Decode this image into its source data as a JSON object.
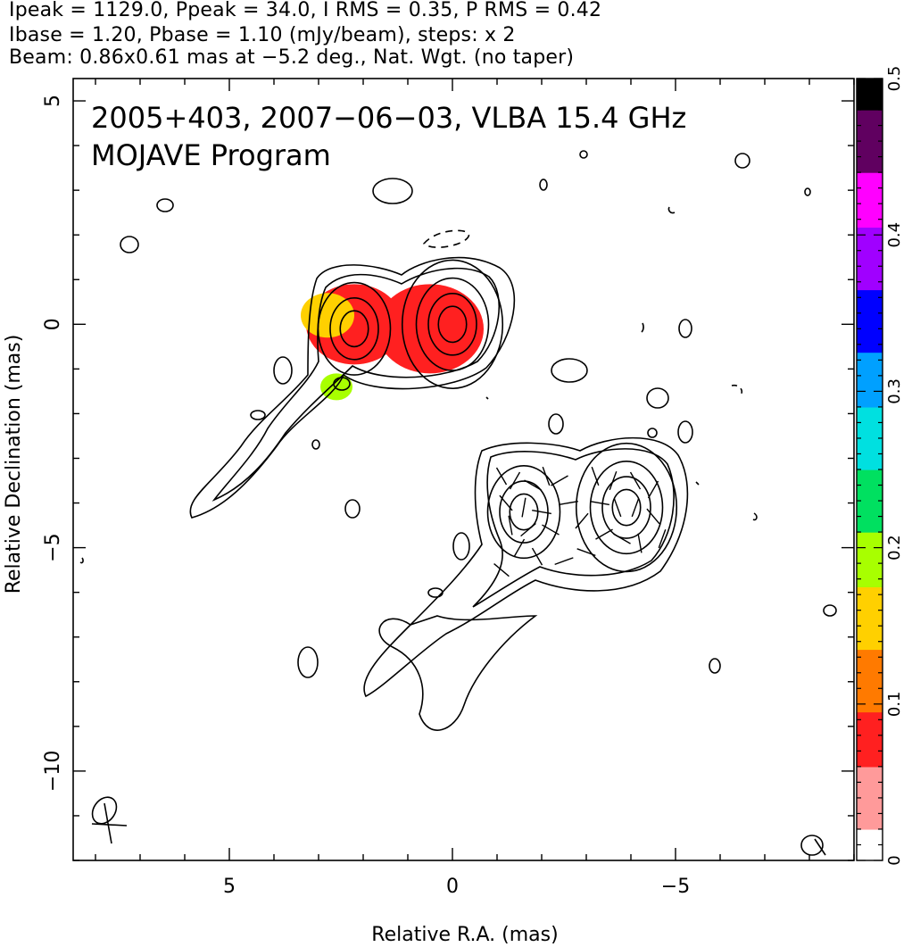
{
  "header": {
    "line1": "Ipeak = 1129.0, Ppeak = 34.0, I RMS = 0.35, P RMS = 0.42",
    "line2": "Ibase = 1.20, Pbase = 1.10 (mJy/beam), steps: x 2",
    "line3": "Beam: 0.86x0.61 mas at −5.2 deg., Nat. Wgt. (no taper)"
  },
  "chart_data": {
    "type": "heatmap",
    "title": "2005+403, 2007−06−03, VLBA 15.4 GHz",
    "subtitle": "MOJAVE Program",
    "xlabel": "Relative R.A. (mas)",
    "ylabel": "Relative Declination (mas)",
    "xlim": [
      8.5,
      -9.0
    ],
    "ylim": [
      -12.0,
      5.5
    ],
    "xticks": [
      {
        "value": 5,
        "label": "5"
      },
      {
        "value": 0,
        "label": "0"
      },
      {
        "value": -5,
        "label": "−5"
      }
    ],
    "yticks": [
      {
        "value": 5,
        "label": "5"
      },
      {
        "value": 0,
        "label": "0"
      },
      {
        "value": -5,
        "label": "−5"
      },
      {
        "value": -10,
        "label": "−10"
      }
    ],
    "colorbar": {
      "range": [
        0,
        0.5
      ],
      "ticks": [
        {
          "value": 0,
          "label": "0"
        },
        {
          "value": 0.1,
          "label": "0.1"
        },
        {
          "value": 0.2,
          "label": "0.2"
        },
        {
          "value": 0.3,
          "label": "0.3"
        },
        {
          "value": 0.4,
          "label": "0.4"
        },
        {
          "value": 0.5,
          "label": "0.5"
        }
      ],
      "colors": [
        "#ffffff",
        "#ff9a9a",
        "#ff2020",
        "#ff7a00",
        "#ffd000",
        "#a8ff00",
        "#00e060",
        "#00e0e0",
        "#00a0ff",
        "#0000ff",
        "#a000ff",
        "#ff00ff",
        "#600060",
        "#000000"
      ]
    },
    "fractional_polarization_map": [
      {
        "x": 2.2,
        "y": 0.0,
        "r": 0.9,
        "value": 0.07
      },
      {
        "x": 0.5,
        "y": -0.1,
        "r": 1.0,
        "value": 0.08
      },
      {
        "x": 2.8,
        "y": 0.2,
        "r": 0.5,
        "value": 0.17
      },
      {
        "x": 2.6,
        "y": -1.4,
        "r": 0.3,
        "value": 0.2
      }
    ],
    "stokes_i_contours": [
      {
        "component": "upper-core",
        "center": [
          0.0,
          0.0
        ],
        "radii": [
          0.35,
          0.6,
          0.9,
          1.25
        ]
      },
      {
        "component": "upper-jet",
        "center": [
          2.2,
          -0.1
        ],
        "radii": [
          0.35,
          0.6,
          0.9
        ]
      },
      {
        "component": "lower-core",
        "center": [
          -3.9,
          -4.1
        ],
        "radii": [
          0.35,
          0.6,
          0.9,
          1.25
        ]
      },
      {
        "component": "lower-jet",
        "center": [
          -1.6,
          -4.2
        ],
        "radii": [
          0.35,
          0.6,
          0.9
        ]
      }
    ],
    "evpa_vectors": [
      {
        "x": -1.1,
        "y": -3.4,
        "angle": 30
      },
      {
        "x": -1.4,
        "y": -3.5,
        "angle": 150
      },
      {
        "x": -1.8,
        "y": -3.6,
        "angle": 60
      },
      {
        "x": -2.1,
        "y": -3.4,
        "angle": 20
      },
      {
        "x": -2.4,
        "y": -3.5,
        "angle": 120
      },
      {
        "x": -1.2,
        "y": -4.0,
        "angle": 40
      },
      {
        "x": -1.6,
        "y": -4.1,
        "angle": 170
      },
      {
        "x": -2.0,
        "y": -4.2,
        "angle": 80
      },
      {
        "x": -1.3,
        "y": -4.5,
        "angle": 10
      },
      {
        "x": -1.7,
        "y": -4.6,
        "angle": 130
      },
      {
        "x": -2.2,
        "y": -4.6,
        "angle": 60
      },
      {
        "x": -1.5,
        "y": -5.0,
        "angle": 150
      },
      {
        "x": -1.9,
        "y": -5.2,
        "angle": 30
      },
      {
        "x": -2.6,
        "y": -4.0,
        "angle": 100
      },
      {
        "x": -3.2,
        "y": -3.4,
        "angle": 20
      },
      {
        "x": -3.6,
        "y": -3.5,
        "angle": 160
      },
      {
        "x": -4.1,
        "y": -3.5,
        "angle": 30
      },
      {
        "x": -4.5,
        "y": -3.7,
        "angle": 150
      },
      {
        "x": -3.3,
        "y": -4.0,
        "angle": 80
      },
      {
        "x": -3.7,
        "y": -4.1,
        "angle": 20
      },
      {
        "x": -4.1,
        "y": -4.1,
        "angle": 160
      },
      {
        "x": -4.5,
        "y": -4.3,
        "angle": 40
      },
      {
        "x": -3.4,
        "y": -4.7,
        "angle": 120
      },
      {
        "x": -3.8,
        "y": -4.8,
        "angle": 60
      },
      {
        "x": -4.2,
        "y": -4.9,
        "angle": 10
      },
      {
        "x": -2.9,
        "y": -4.4,
        "angle": 140
      },
      {
        "x": -3.0,
        "y": -5.1,
        "angle": 70
      },
      {
        "x": -4.7,
        "y": -4.8,
        "angle": 160
      },
      {
        "x": -1.1,
        "y": -5.5,
        "angle": 50
      },
      {
        "x": -2.5,
        "y": -5.3,
        "angle": 110
      }
    ]
  }
}
